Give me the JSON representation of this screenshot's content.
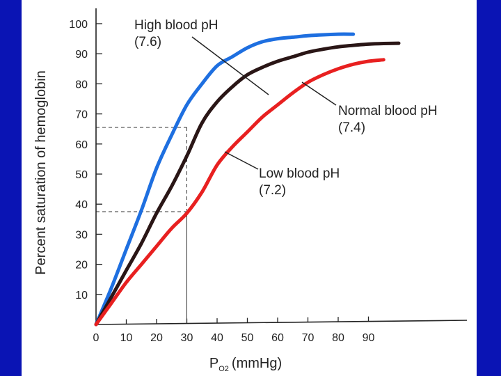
{
  "chart_data": {
    "type": "line",
    "title": "",
    "ylabel": "Percent saturation of hemoglobin",
    "xlabel_main": "P",
    "xlabel_sub": "O2",
    "xlabel_unit": "(mmHg)",
    "xlim": [
      0,
      100
    ],
    "ylim": [
      0,
      100
    ],
    "x_ticks": [
      0,
      10,
      20,
      30,
      40,
      50,
      60,
      70,
      80,
      90
    ],
    "y_ticks": [
      10,
      20,
      30,
      40,
      50,
      60,
      70,
      80,
      90,
      100
    ],
    "grid": false,
    "legend": "annotations",
    "series": [
      {
        "color": "#1e6fe0",
        "label_line1": "High blood pH",
        "label_line2": "(7.6)",
        "x": [
          0,
          5,
          10,
          15,
          20,
          25,
          30,
          35,
          40,
          45,
          50,
          55,
          60,
          65,
          70,
          75,
          80,
          85
        ],
        "y": [
          0,
          12,
          25,
          38,
          52,
          63,
          73,
          80,
          86,
          89,
          92,
          94,
          95,
          95.5,
          96,
          96.3,
          96.5,
          96.5
        ]
      },
      {
        "color": "#2a1616",
        "label_line1": "Normal blood pH",
        "label_line2": "(7.4)",
        "x": [
          0,
          5,
          10,
          15,
          20,
          25,
          30,
          35,
          40,
          45,
          50,
          55,
          60,
          65,
          70,
          75,
          80,
          85,
          90,
          95,
          100
        ],
        "y": [
          0,
          9,
          18,
          27,
          37,
          46,
          56,
          67,
          74,
          79,
          83,
          85.5,
          87.5,
          89,
          90.5,
          91.5,
          92.3,
          92.8,
          93.2,
          93.4,
          93.5
        ]
      },
      {
        "color": "#e82020",
        "label_line1": "Low blood pH",
        "label_line2": "(7.2)",
        "x": [
          0,
          5,
          10,
          15,
          20,
          25,
          30,
          35,
          40,
          45,
          50,
          55,
          60,
          65,
          70,
          75,
          80,
          85,
          90,
          95
        ],
        "y": [
          0,
          7,
          14,
          20,
          26,
          32,
          37,
          44,
          53,
          59,
          64,
          69,
          73,
          77,
          80.5,
          83,
          85,
          86.5,
          87.5,
          88
        ]
      }
    ],
    "reference_lines": [
      {
        "x": 30,
        "y": 65.5
      },
      {
        "x": 30,
        "y": 37.5
      }
    ]
  }
}
